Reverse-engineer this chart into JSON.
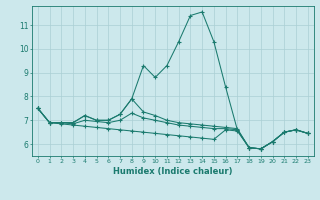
{
  "title": "",
  "xlabel": "Humidex (Indice chaleur)",
  "ylabel": "",
  "bg_color": "#cce8ec",
  "line_color": "#1a7a6e",
  "grid_color": "#aacfd4",
  "xlim": [
    -0.5,
    23.5
  ],
  "ylim": [
    5.5,
    11.8
  ],
  "xticks": [
    0,
    1,
    2,
    3,
    4,
    5,
    6,
    7,
    8,
    9,
    10,
    11,
    12,
    13,
    14,
    15,
    16,
    17,
    18,
    19,
    20,
    21,
    22,
    23
  ],
  "yticks": [
    6,
    7,
    8,
    9,
    10,
    11
  ],
  "line1_x": [
    0,
    1,
    2,
    3,
    4,
    5,
    6,
    7,
    8,
    9,
    10,
    11,
    12,
    13,
    14,
    15,
    16,
    17,
    18,
    19,
    20,
    21,
    22,
    23
  ],
  "line1_y": [
    7.5,
    6.9,
    6.9,
    6.9,
    7.2,
    7.0,
    7.0,
    7.25,
    7.9,
    9.3,
    8.8,
    9.3,
    10.3,
    11.4,
    11.55,
    10.3,
    8.4,
    6.6,
    5.85,
    5.8,
    6.1,
    6.5,
    6.6,
    6.45
  ],
  "line2_x": [
    0,
    1,
    2,
    3,
    4,
    5,
    6,
    7,
    8,
    9,
    10,
    11,
    12,
    13,
    14,
    15,
    16,
    17,
    18,
    19,
    20,
    21,
    22,
    23
  ],
  "line2_y": [
    7.5,
    6.9,
    6.9,
    6.9,
    7.2,
    7.0,
    7.0,
    7.25,
    7.9,
    7.35,
    7.2,
    7.0,
    6.9,
    6.85,
    6.8,
    6.75,
    6.7,
    6.65,
    5.85,
    5.8,
    6.1,
    6.5,
    6.6,
    6.45
  ],
  "line3_x": [
    0,
    1,
    2,
    3,
    4,
    5,
    6,
    7,
    8,
    9,
    10,
    11,
    12,
    13,
    14,
    15,
    16,
    17,
    18,
    19,
    20,
    21,
    22,
    23
  ],
  "line3_y": [
    7.5,
    6.9,
    6.9,
    6.85,
    7.0,
    6.95,
    6.9,
    7.0,
    7.3,
    7.1,
    7.0,
    6.9,
    6.8,
    6.75,
    6.7,
    6.65,
    6.65,
    6.6,
    5.85,
    5.8,
    6.1,
    6.5,
    6.6,
    6.45
  ],
  "line4_x": [
    0,
    1,
    2,
    3,
    4,
    5,
    6,
    7,
    8,
    9,
    10,
    11,
    12,
    13,
    14,
    15,
    16,
    17,
    18,
    19,
    20,
    21,
    22,
    23
  ],
  "line4_y": [
    7.5,
    6.9,
    6.85,
    6.8,
    6.75,
    6.7,
    6.65,
    6.6,
    6.55,
    6.5,
    6.45,
    6.4,
    6.35,
    6.3,
    6.25,
    6.2,
    6.6,
    6.55,
    5.85,
    5.8,
    6.1,
    6.5,
    6.6,
    6.45
  ]
}
